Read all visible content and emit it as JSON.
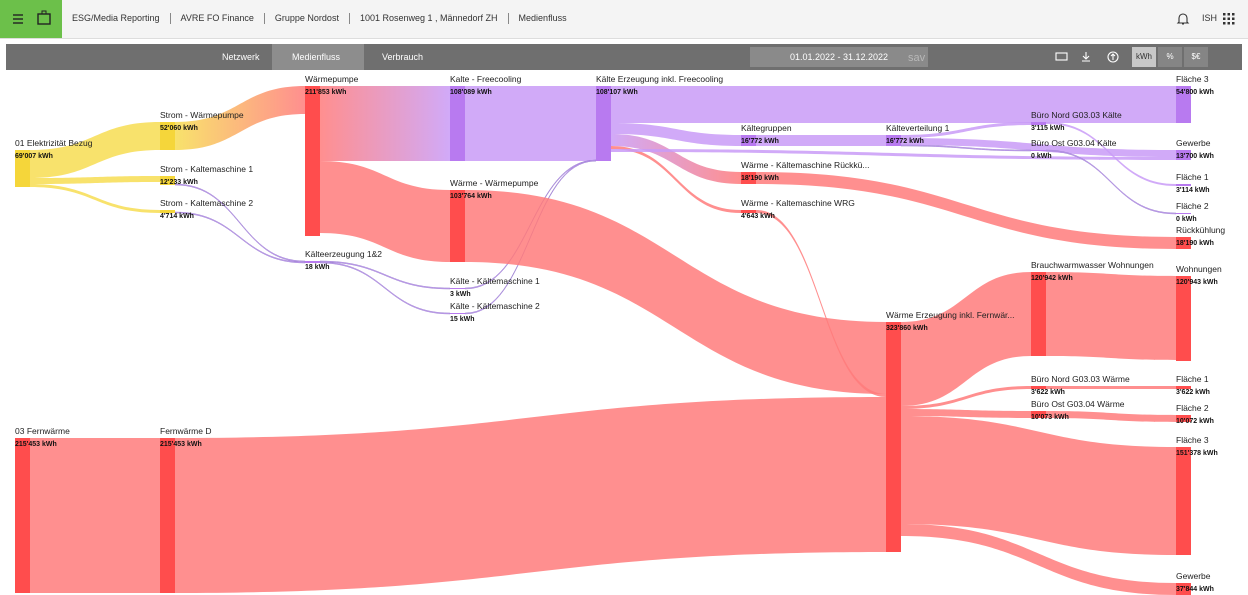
{
  "header": {
    "breadcrumbs": [
      "ESG/Media Reporting",
      "AVRE FO Finance",
      "Gruppe Nordost",
      "1001 Rosenweg 1 , Männedorf ZH",
      "Medienfluss"
    ],
    "user": "ISH"
  },
  "toolbar": {
    "tabs": [
      "Netzwerk",
      "Medienfluss",
      "Verbrauch"
    ],
    "date_range": "01.01.2022 - 31.12.2022",
    "search_placeholder": "sav",
    "units": [
      "kWh",
      "%",
      "$€"
    ]
  },
  "sankey": {
    "nodes": [
      {
        "label": "01 Elektrizität Bezug",
        "value": "69'007 kWh"
      },
      {
        "label": "03 Fernwärme",
        "value": "215'453 kWh"
      },
      {
        "label": "Strom - Wärmepumpe",
        "value": "52'060 kWh"
      },
      {
        "label": "Strom - Kaltemaschine 1",
        "value": "12'233 kWh"
      },
      {
        "label": "Strom - Kaltemaschine 2",
        "value": "4'714 kWh"
      },
      {
        "label": "Fernwärme D",
        "value": "215'453 kWh"
      },
      {
        "label": "Wärmepumpe",
        "value": "211'853 kWh"
      },
      {
        "label": "Kälteerzeugung 1&2",
        "value": "18 kWh"
      },
      {
        "label": "Kalte - Freecooling",
        "value": "108'089 kWh"
      },
      {
        "label": "Wärme - Wärmepumpe",
        "value": "103'764 kWh"
      },
      {
        "label": "Kälte - Kältemaschine 1",
        "value": "3 kWh"
      },
      {
        "label": "Kälte - Kältemaschine 2",
        "value": "15 kWh"
      },
      {
        "label": "Kälte Erzeugung inkl. Freecooling",
        "value": "108'107 kWh"
      },
      {
        "label": "Kältegruppen",
        "value": "16'772 kWh"
      },
      {
        "label": "Wärme - Kältemaschine Rückkü...",
        "value": "18'190 kWh"
      },
      {
        "label": "Wärme - Kaltemaschine WRG",
        "value": "4'643 kWh"
      },
      {
        "label": "Kälteverteilung 1",
        "value": "16'772 kWh"
      },
      {
        "label": "Wärme Erzeugung inkl. Fernwär...",
        "value": "323'860 kWh"
      },
      {
        "label": "Büro Nord G03.03 Kälte",
        "value": "3'115 kWh"
      },
      {
        "label": "Büro Ost G03.04 Kälte",
        "value": "0 kWh"
      },
      {
        "label": "Brauchwarmwasser Wohnungen",
        "value": "120'942 kWh"
      },
      {
        "label": "Büro Nord G03.03 Wärme",
        "value": "3'622 kWh"
      },
      {
        "label": "Büro Ost G03.04 Wärme",
        "value": "10'073 kWh"
      },
      {
        "label": "Fläche 3",
        "value": "54'800 kWh"
      },
      {
        "label": "Gewerbe",
        "value": "13'700 kWh"
      },
      {
        "label": "Fläche 1",
        "value": "3'114 kWh"
      },
      {
        "label": "Fläche 2",
        "value": "0 kWh"
      },
      {
        "label": "Rückkühlung",
        "value": "18'190 kWh"
      },
      {
        "label": "Wohnungen",
        "value": "120'943 kWh"
      },
      {
        "label": "Fläche 1",
        "value": "3'622 kWh"
      },
      {
        "label": "Fläche 2",
        "value": "10'072 kWh"
      },
      {
        "label": "Fläche 3",
        "value": "151'378 kWh"
      },
      {
        "label": "Gewerbe",
        "value": "37'844 kWh"
      }
    ]
  }
}
